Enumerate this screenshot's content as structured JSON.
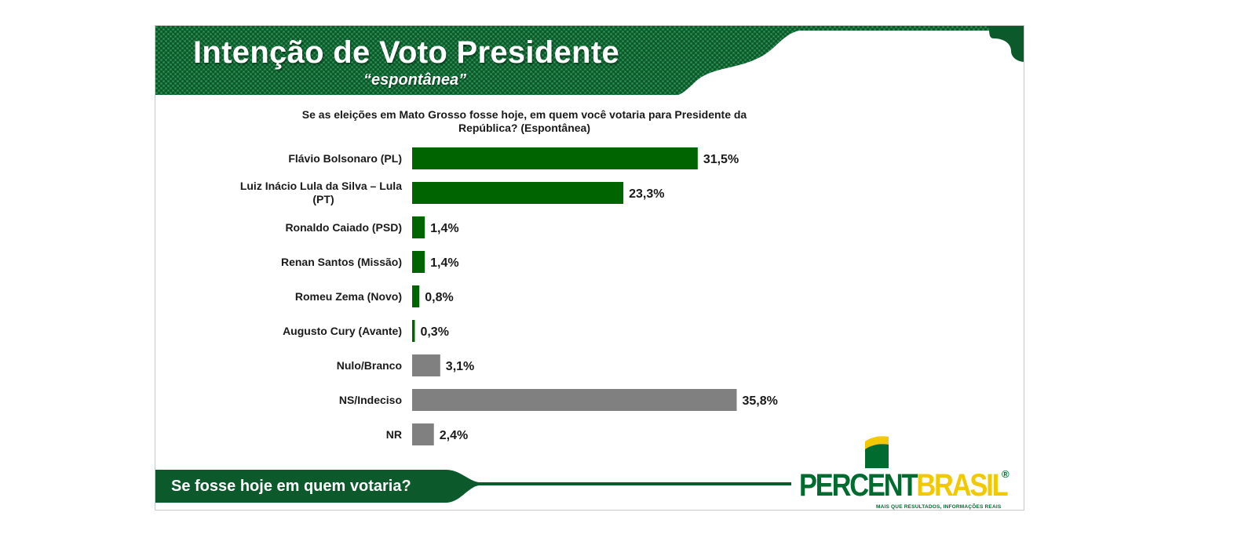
{
  "header": {
    "title": "Intenção de Voto Presidente",
    "subtitle": "“espontânea”"
  },
  "question": "Se as eleições em Mato Grosso fosse hoje, em quem você votaria para Presidente da República? (Espontânea)",
  "footer": {
    "text": "Se fosse hoje em quem votaria?"
  },
  "brand": {
    "name_part1": "PERCENT",
    "name_part2": "BRASIL",
    "registered": "®",
    "tagline": "MAIS QUE RESULTADOS, INFORMAÇÕES REAIS"
  },
  "colors": {
    "header_green": "#0c5a2c",
    "candidate_bar": "#006400",
    "other_bar": "#808080",
    "brand_green": "#006b2e",
    "brand_yellow": "#f2c800"
  },
  "chart_data": {
    "type": "bar",
    "orientation": "horizontal",
    "categories": [
      "Flávio Bolsonaro (PL)",
      "Luiz Inácio Lula da Silva – Lula (PT)",
      "Ronaldo Caiado (PSD)",
      "Renan Santos (Missão)",
      "Romeu Zema (Novo)",
      "Augusto Cury (Avante)",
      "Nulo/Branco",
      "NS/Indeciso",
      "NR"
    ],
    "values": [
      31.5,
      23.3,
      1.4,
      1.4,
      0.8,
      0.3,
      3.1,
      35.8,
      2.4
    ],
    "labels": [
      "31,5%",
      "23,3%",
      "1,4%",
      "1,4%",
      "0,8%",
      "0,3%",
      "3,1%",
      "35,8%",
      "2,4%"
    ],
    "bar_colors": [
      "#006400",
      "#006400",
      "#006400",
      "#006400",
      "#006400",
      "#006400",
      "#808080",
      "#808080",
      "#808080"
    ],
    "xlim": [
      0,
      40
    ],
    "grid": false,
    "legend": false
  }
}
